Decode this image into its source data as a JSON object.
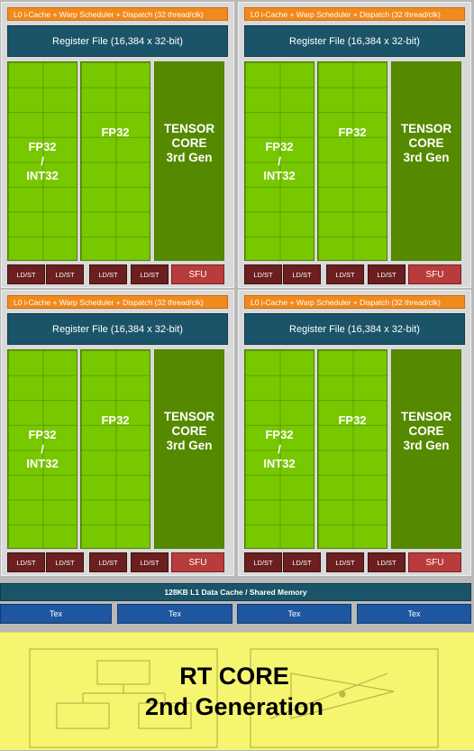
{
  "partition": {
    "scheduler": "L0 i-Cache + Warp Scheduler + Dispatch (32 thread/clk)",
    "register_file": "Register File (16,384 x 32-bit)",
    "fp32_int32_lines": [
      "FP32",
      "/",
      "INT32"
    ],
    "fp32": "FP32",
    "tensor_lines": [
      "TENSOR",
      "CORE",
      "3rd Gen"
    ],
    "ldst": "LD/ST",
    "sfu": "SFU"
  },
  "shared": {
    "l1": "128KB L1 Data Cache / Shared Memory",
    "tex": [
      "Tex",
      "Tex",
      "Tex",
      "Tex"
    ]
  },
  "rt_core": {
    "line1": "RT CORE",
    "line2": "2nd Generation"
  },
  "colors": {
    "scheduler": "#f08a1c",
    "register_file": "#1b5468",
    "fp_unit": "#78c800",
    "tensor": "#558a00",
    "ldst": "#6b1f1f",
    "sfu": "#b83c3c",
    "tex": "#1e56a0",
    "rt_core": "#f5f570"
  }
}
